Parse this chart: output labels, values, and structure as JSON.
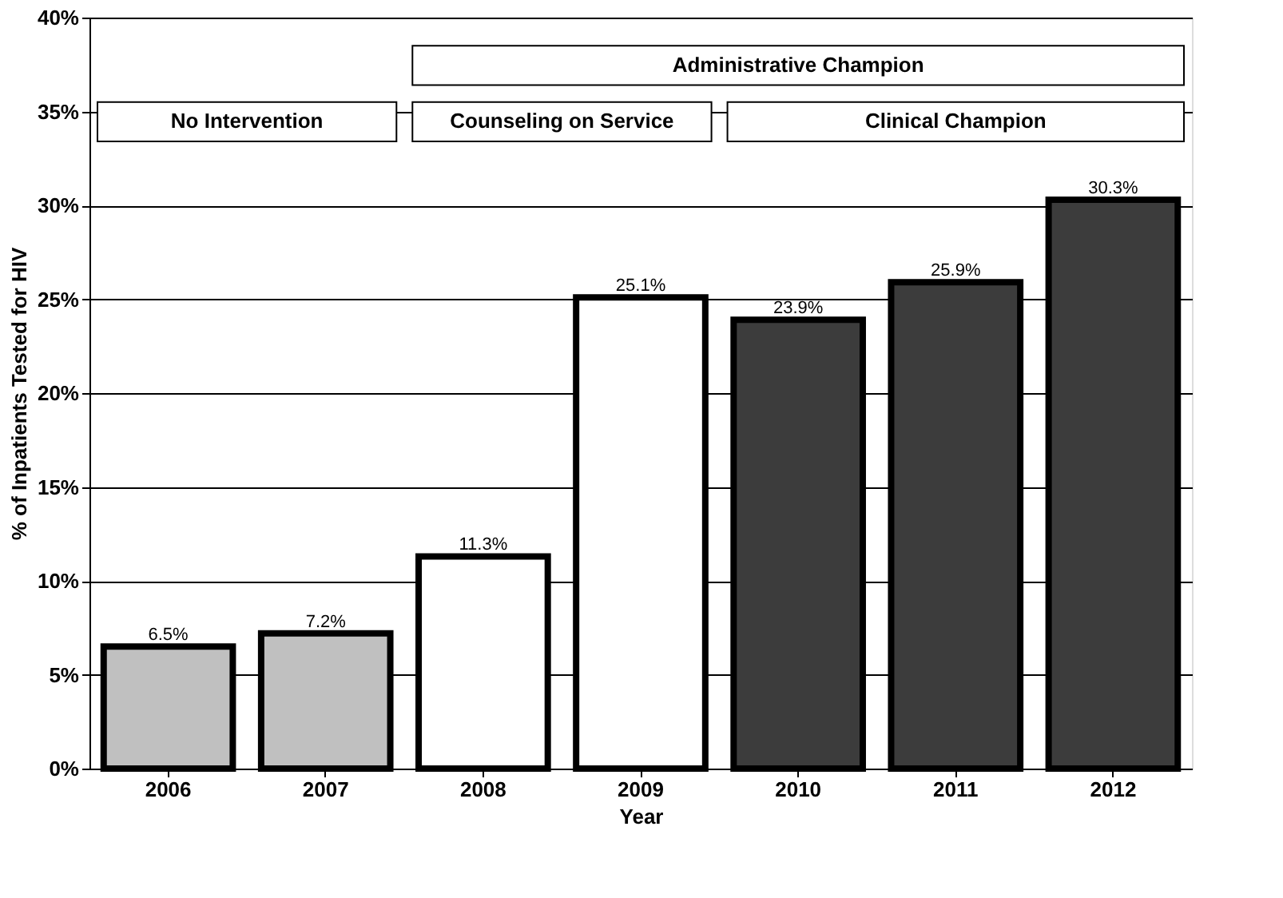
{
  "chart_data": {
    "type": "bar",
    "categories": [
      "2006",
      "2007",
      "2008",
      "2009",
      "2010",
      "2011",
      "2012"
    ],
    "values": [
      6.5,
      7.2,
      11.3,
      25.1,
      23.9,
      25.9,
      30.3
    ],
    "colors": [
      "#c0c0c0",
      "#c0c0c0",
      "#ffffff",
      "#ffffff",
      "#3c3c3c",
      "#3c3c3c",
      "#3c3c3c"
    ],
    "value_labels": [
      "6.5%",
      "7.2%",
      "11.3%",
      "25.1%",
      "23.9%",
      "25.9%",
      "30.3%"
    ],
    "xlabel": "Year",
    "ylabel": "% of Inpatients Tested for HIV",
    "ylim": [
      0,
      40
    ],
    "yticks": [
      {
        "value": 0,
        "label": "0%"
      },
      {
        "value": 5,
        "label": "5%"
      },
      {
        "value": 10,
        "label": "10%"
      },
      {
        "value": 15,
        "label": "15%"
      },
      {
        "value": 20,
        "label": "20%"
      },
      {
        "value": 25,
        "label": "25%"
      },
      {
        "value": 30,
        "label": "30%"
      },
      {
        "value": 35,
        "label": "35%"
      },
      {
        "value": 40,
        "label": "40%"
      }
    ],
    "grid": "y",
    "annotations": [
      "Administrative Champion",
      "No Intervention",
      "Counseling on Service",
      "Clinical Champion"
    ]
  }
}
